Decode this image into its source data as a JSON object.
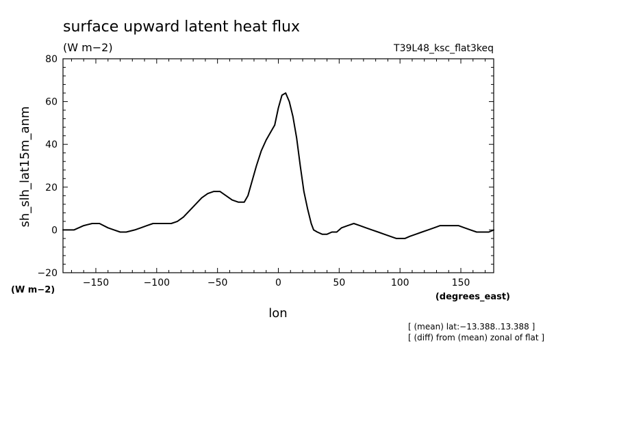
{
  "chart_data": {
    "type": "line",
    "title": "surface upward latent heat flux",
    "title_units": "(W m−2)",
    "experiment": "T39L48_ksc_flat3keq",
    "ylabel": "sh_slh_lat15m_anm",
    "ylabel_units": "(W m−2)",
    "xlabel": "lon",
    "xlabel_units": "(degrees_east)",
    "xlim": [
      -177,
      177
    ],
    "ylim": [
      -20,
      80
    ],
    "xticks": [
      -150,
      -100,
      -50,
      0,
      50,
      100,
      150
    ],
    "xtick_labels": [
      "−150",
      "−100",
      "−50",
      "0",
      "50",
      "100",
      "150"
    ],
    "yticks": [
      -20,
      0,
      20,
      40,
      60,
      80
    ],
    "ytick_labels": [
      "−20",
      "0",
      "20",
      "40",
      "60",
      "80"
    ],
    "grid": false,
    "line_color": "#000000",
    "notes": [
      "[ (mean) lat:−13.388..13.388 ]",
      "[ (diff) from (mean) zonal of flat ]"
    ],
    "series": [
      {
        "x": [
          -177,
          -168,
          -160,
          -153,
          -147,
          -140,
          -135,
          -130,
          -125,
          -118,
          -113,
          -108,
          -103,
          -98,
          -93,
          -88,
          -83,
          -78,
          -73,
          -68,
          -63,
          -58,
          -53,
          -48,
          -43,
          -38,
          -33,
          -28,
          -25,
          -22,
          -18,
          -14,
          -10,
          -6,
          -3,
          0,
          3,
          6,
          9,
          12,
          15,
          18,
          21,
          24,
          27,
          29,
          32,
          36,
          40,
          44,
          48,
          52,
          57,
          62,
          67,
          72,
          77,
          82,
          87,
          92,
          97,
          101,
          104,
          108,
          113,
          118,
          123,
          128,
          133,
          138,
          143,
          148,
          153,
          158,
          163,
          168,
          173,
          177
        ],
        "y": [
          0,
          0,
          2,
          3,
          3,
          1,
          0,
          -1,
          -1,
          0,
          1,
          2,
          3,
          3,
          3,
          3,
          4,
          6,
          9,
          12,
          15,
          17,
          18,
          18,
          16,
          14,
          13,
          13,
          16,
          22,
          30,
          37,
          42,
          46,
          49,
          57,
          63,
          64,
          60,
          53,
          43,
          30,
          18,
          10,
          3,
          0,
          -1,
          -2,
          -2,
          -1,
          -1,
          1,
          2,
          3,
          2,
          1,
          0,
          -1,
          -2,
          -3,
          -4,
          -4,
          -4,
          -3,
          -2,
          -1,
          0,
          1,
          2,
          2,
          2,
          2,
          1,
          0,
          -1,
          -1,
          -1,
          0
        ]
      }
    ]
  }
}
